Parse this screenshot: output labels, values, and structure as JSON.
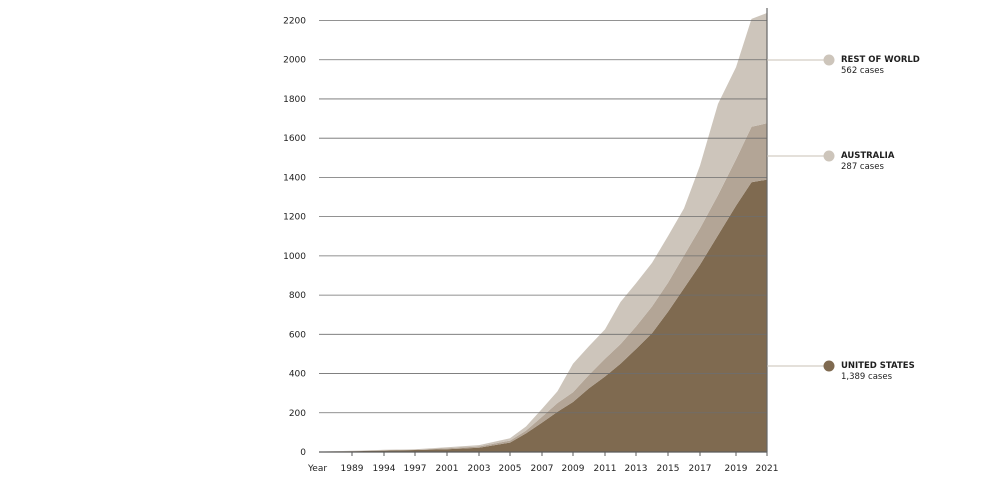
{
  "chart_data": {
    "type": "area",
    "stacked": true,
    "xlabel": "Year",
    "ylabel": "",
    "ylim": [
      0,
      2200
    ],
    "yticks": [
      0,
      200,
      400,
      600,
      800,
      1000,
      1200,
      1400,
      1600,
      1800,
      2000,
      2200
    ],
    "xticks": [
      1989,
      1994,
      1997,
      2001,
      2003,
      2005,
      2007,
      2009,
      2011,
      2013,
      2015,
      2017,
      2019,
      2021
    ],
    "grid": "horizontal",
    "x": [
      1985,
      1989,
      1994,
      1997,
      2001,
      2003,
      2005,
      2006,
      2007,
      2008,
      2009,
      2010,
      2011,
      2012,
      2013,
      2014,
      2015,
      2016,
      2017,
      2018,
      2019,
      2020,
      2021
    ],
    "series": [
      {
        "name": "UNITED STATES",
        "color": "#7f6a50",
        "values": [
          2,
          4,
          7,
          10,
          14,
          22,
          48,
          95,
          150,
          205,
          255,
          325,
          385,
          450,
          525,
          605,
          715,
          835,
          955,
          1105,
          1255,
          1375,
          1389
        ]
      },
      {
        "name": "AUSTRALIA",
        "color": "#b3a596",
        "values": [
          0,
          1,
          2,
          2,
          5,
          6,
          10,
          14,
          30,
          45,
          50,
          68,
          90,
          100,
          115,
          137,
          148,
          167,
          185,
          205,
          237,
          283,
          287
        ]
      },
      {
        "name": "REST OF WORLD",
        "color": "#cdc5bb",
        "values": [
          0,
          1,
          2,
          2,
          5,
          7,
          12,
          21,
          40,
          60,
          145,
          147,
          150,
          215,
          220,
          222,
          238,
          240,
          320,
          465,
          470,
          550,
          562
        ]
      }
    ],
    "legend": [
      {
        "title": "REST OF WORLD",
        "subtitle": "562 cases",
        "marker_color": "#cdc5bb"
      },
      {
        "title": "AUSTRALIA",
        "subtitle": "287 cases",
        "marker_color": "#cdc5bb"
      },
      {
        "title": "UNITED STATES",
        "subtitle": "1,389 cases",
        "marker_color": "#7f6a50"
      }
    ],
    "legend_placement": "right"
  }
}
